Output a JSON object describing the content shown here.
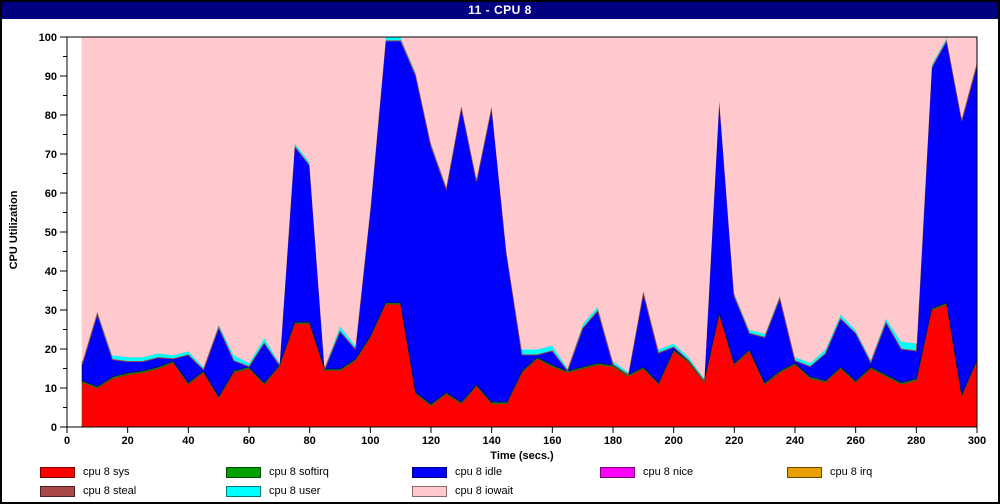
{
  "window": {
    "title": "11 - CPU 8",
    "titlebar_color": "#000080"
  },
  "axes": {
    "y_title": "CPU Utilization",
    "x_title": "Time (secs.)",
    "y_ticks": [
      0,
      10,
      20,
      30,
      40,
      50,
      60,
      70,
      80,
      90,
      100
    ],
    "x_ticks": [
      0,
      20,
      40,
      60,
      80,
      100,
      120,
      140,
      160,
      180,
      200,
      220,
      240,
      260,
      280,
      300
    ],
    "xlim": [
      0,
      300
    ],
    "ylim": [
      0,
      100
    ]
  },
  "legend": {
    "items": [
      {
        "label": "cpu 8 sys",
        "fill": "#ff0000",
        "border": "#7a0000"
      },
      {
        "label": "cpu 8 softirq",
        "fill": "#00a000",
        "border": "#004d00"
      },
      {
        "label": "cpu 8 idle",
        "fill": "#0000ff",
        "border": "#00007a"
      },
      {
        "label": "cpu 8 nice",
        "fill": "#ff00ff",
        "border": "#7a007a"
      },
      {
        "label": "cpu 8 irq",
        "fill": "#e8a000",
        "border": "#6e4a00"
      },
      {
        "label": "cpu 8 steal",
        "fill": "#a84848",
        "border": "#4d1f1f"
      },
      {
        "label": "cpu 8 user",
        "fill": "#00ffff",
        "border": "#007a7a"
      },
      {
        "label": "cpu 8 iowait",
        "fill": "#ffc9ce",
        "border": "#8a6a6d"
      }
    ]
  },
  "chart_data": {
    "type": "area",
    "stacked": true,
    "title": "11 - CPU 8",
    "xlabel": "Time (secs.)",
    "ylabel": "CPU Utilization",
    "xlim": [
      0,
      300
    ],
    "ylim": [
      0,
      100
    ],
    "grid": false,
    "legend_position": "bottom",
    "x": [
      5,
      10,
      15,
      20,
      25,
      30,
      35,
      40,
      45,
      50,
      55,
      60,
      65,
      70,
      75,
      80,
      85,
      90,
      95,
      100,
      105,
      110,
      115,
      120,
      125,
      130,
      135,
      140,
      145,
      150,
      155,
      160,
      165,
      170,
      175,
      180,
      185,
      190,
      195,
      200,
      205,
      210,
      215,
      220,
      225,
      230,
      235,
      240,
      245,
      250,
      255,
      260,
      265,
      270,
      275,
      280,
      285,
      290,
      295,
      300
    ],
    "series": [
      {
        "name": "cpu 8 sys",
        "fill": "#ff0000",
        "stroke": "#b22000",
        "values": [
          11.5,
          10,
          12.5,
          13.5,
          14,
          15,
          16.5,
          11,
          14,
          7.5,
          14,
          15,
          11,
          15.5,
          26.5,
          26.5,
          14.5,
          14.5,
          17,
          23,
          31.5,
          31.5,
          8.5,
          5.5,
          8.5,
          6,
          10.5,
          6,
          6,
          14,
          17.5,
          15.5,
          14,
          15,
          16,
          15.5,
          13,
          15,
          11,
          19.5,
          16.5,
          11.5,
          29,
          16,
          19.5,
          11,
          14,
          16,
          12.5,
          11.5,
          15,
          11.5,
          15,
          13,
          11,
          12,
          30,
          31.5,
          8,
          17
        ]
      },
      {
        "name": "cpu 8 softirq",
        "fill": "#00a000",
        "stroke": "#3d5e00",
        "values_constant": 0.4
      },
      {
        "name": "cpu 8 nice",
        "fill": "#ff00ff",
        "stroke": "#7a007a",
        "values_constant": 0
      },
      {
        "name": "cpu 8 irq",
        "fill": "#e8a000",
        "stroke": "#6e4a00",
        "values_constant": 0
      },
      {
        "name": "cpu 8 steal",
        "fill": "#a84848",
        "stroke": "#4d1f1f",
        "values_constant": 0
      },
      {
        "name": "cpu 8 idle",
        "fill": "#0000ff",
        "stroke": "#00008b",
        "values": [
          4.1,
          18.6,
          4.4,
          2.9,
          2.4,
          2.4,
          0.6,
          7.1,
          0.3,
          17.6,
          2.6,
          0.1,
          10.1,
          0,
          45.1,
          40.1,
          0,
          9.6,
          2.6,
          32.6,
          67.1,
          67.1,
          81.1,
          66.1,
          52.1,
          75.6,
          52.1,
          75.6,
          37.6,
          4.1,
          0.6,
          3.6,
          0,
          9.9,
          13.4,
          0.1,
          0,
          18.9,
          7.6,
          0.6,
          0.1,
          0,
          55.1,
          17.1,
          4.1,
          11.6,
          18.6,
          0.6,
          2.6,
          6.9,
          12.4,
          12.1,
          1.1,
          13.4,
          8.6,
          7.1,
          61.6,
          67.1,
          70.1,
          75.6
        ]
      },
      {
        "name": "cpu 8 user",
        "fill": "#00ffff",
        "stroke": "#9c4a4a",
        "values": [
          1,
          1,
          1.2,
          1.2,
          1.2,
          1.2,
          1,
          1,
          0.8,
          1,
          1.5,
          1,
          1.5,
          0.8,
          1,
          1,
          0.8,
          1.5,
          1,
          1,
          1,
          1,
          1,
          1,
          1,
          1,
          1,
          1,
          1,
          1.5,
          1.5,
          1.5,
          0.8,
          1.2,
          1.2,
          1,
          0.8,
          1.2,
          1,
          1,
          1,
          0.8,
          1,
          1,
          1,
          1,
          1,
          1,
          1,
          1.2,
          1.2,
          1,
          1,
          1.2,
          2,
          2,
          1,
          1,
          1,
          1
        ]
      },
      {
        "name": "cpu 8 iowait",
        "fill": "#ffc9ce",
        "stroke": "#ffc9ce",
        "values": [
          83,
          70,
          81.5,
          82,
          82,
          81,
          81.5,
          80.5,
          84.5,
          73.5,
          81.5,
          83.5,
          77,
          83.5,
          27,
          32,
          84.5,
          74,
          79,
          43,
          0,
          0,
          9,
          27,
          38,
          17,
          36,
          17,
          55,
          80,
          80,
          79,
          85,
          73.5,
          69,
          83,
          86,
          64.5,
          80,
          78.5,
          82,
          87.5,
          14.5,
          65.5,
          75,
          76,
          66,
          82,
          83.5,
          80,
          71,
          75,
          82.5,
          72,
          78,
          78.5,
          7,
          0,
          20.5,
          6
        ]
      }
    ]
  }
}
